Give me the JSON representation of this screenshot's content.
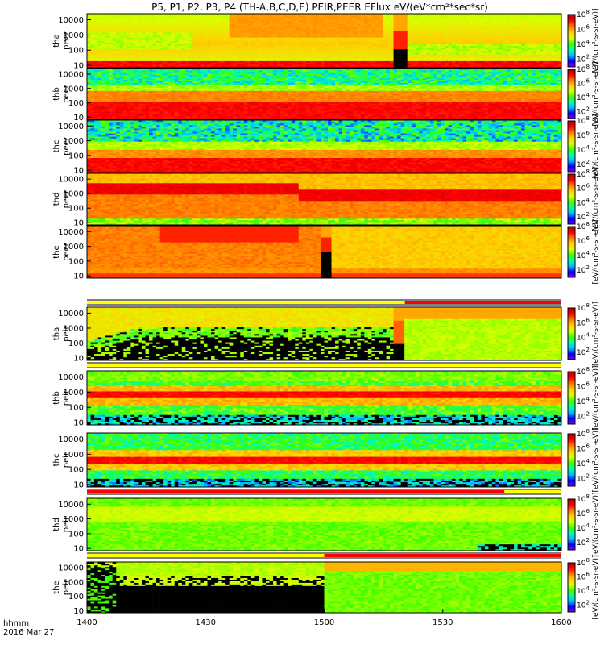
{
  "chart_data": {
    "type": "heatmap",
    "title": "P5, P1, P2, P3, P4 (TH-A,B,C,D,E) PEIR,PEER EFlux eV/(eV*cm²*sec*sr)",
    "time_axis": {
      "label_line1": "hhmm",
      "label_line2": "2016 Mar 27",
      "range_minutes": [
        0,
        120
      ],
      "ticks": [
        {
          "label": "1400",
          "minute": 0
        },
        {
          "label": "1430",
          "minute": 30
        },
        {
          "label": "1500",
          "minute": 60
        },
        {
          "label": "1530",
          "minute": 90
        },
        {
          "label": "1600",
          "minute": 120
        }
      ]
    },
    "energy_axis": {
      "scale": "log",
      "range_eV": [
        7,
        25000
      ],
      "ticks_full": [
        "10",
        "100",
        "1000",
        "10000"
      ],
      "ticks_compact": [
        "10",
        "100",
        "1000",
        "10000"
      ]
    },
    "colorbar": {
      "scale": "log",
      "range": [
        10.0,
        100000000.0
      ],
      "tick_exponents": [
        2,
        4,
        6,
        8
      ],
      "unit_label_long": "[eV/(cm²-s-sr-eV)]",
      "unit_label_long_peir": "[eV/(cm²-s-sr-eV)]",
      "colors": [
        "#7f00ff",
        "#0000ff",
        "#00bfff",
        "#00ffaa",
        "#3cff00",
        "#d8ff00",
        "#ffd000",
        "#ff7a00",
        "#ff0000",
        "#b00000"
      ]
    },
    "panels": [
      {
        "probe": "tha",
        "species": "peer",
        "label_top": "tha",
        "label_bottom": "peer"
      },
      {
        "probe": "thb",
        "species": "peer",
        "label_top": "thb",
        "label_bottom": "peer"
      },
      {
        "probe": "thc",
        "species": "peer",
        "label_top": "thc",
        "label_bottom": "peer"
      },
      {
        "probe": "thd",
        "species": "peer",
        "label_top": "thd",
        "label_bottom": "peer"
      },
      {
        "probe": "the",
        "species": "peer",
        "label_top": "the",
        "label_bottom": "peer"
      },
      {
        "probe": "tha",
        "species": "peir",
        "label_top": "tha",
        "label_bottom": "peir"
      },
      {
        "probe": "thb",
        "species": "peir",
        "label_top": "thb",
        "label_bottom": "peir"
      },
      {
        "probe": "thc",
        "species": "peir",
        "label_top": "thc",
        "label_bottom": "peir"
      },
      {
        "probe": "thd",
        "species": "peir",
        "label_top": "thd",
        "label_bottom": "peir"
      },
      {
        "probe": "the",
        "species": "peir",
        "label_top": "the",
        "label_bottom": "peir"
      }
    ]
  }
}
